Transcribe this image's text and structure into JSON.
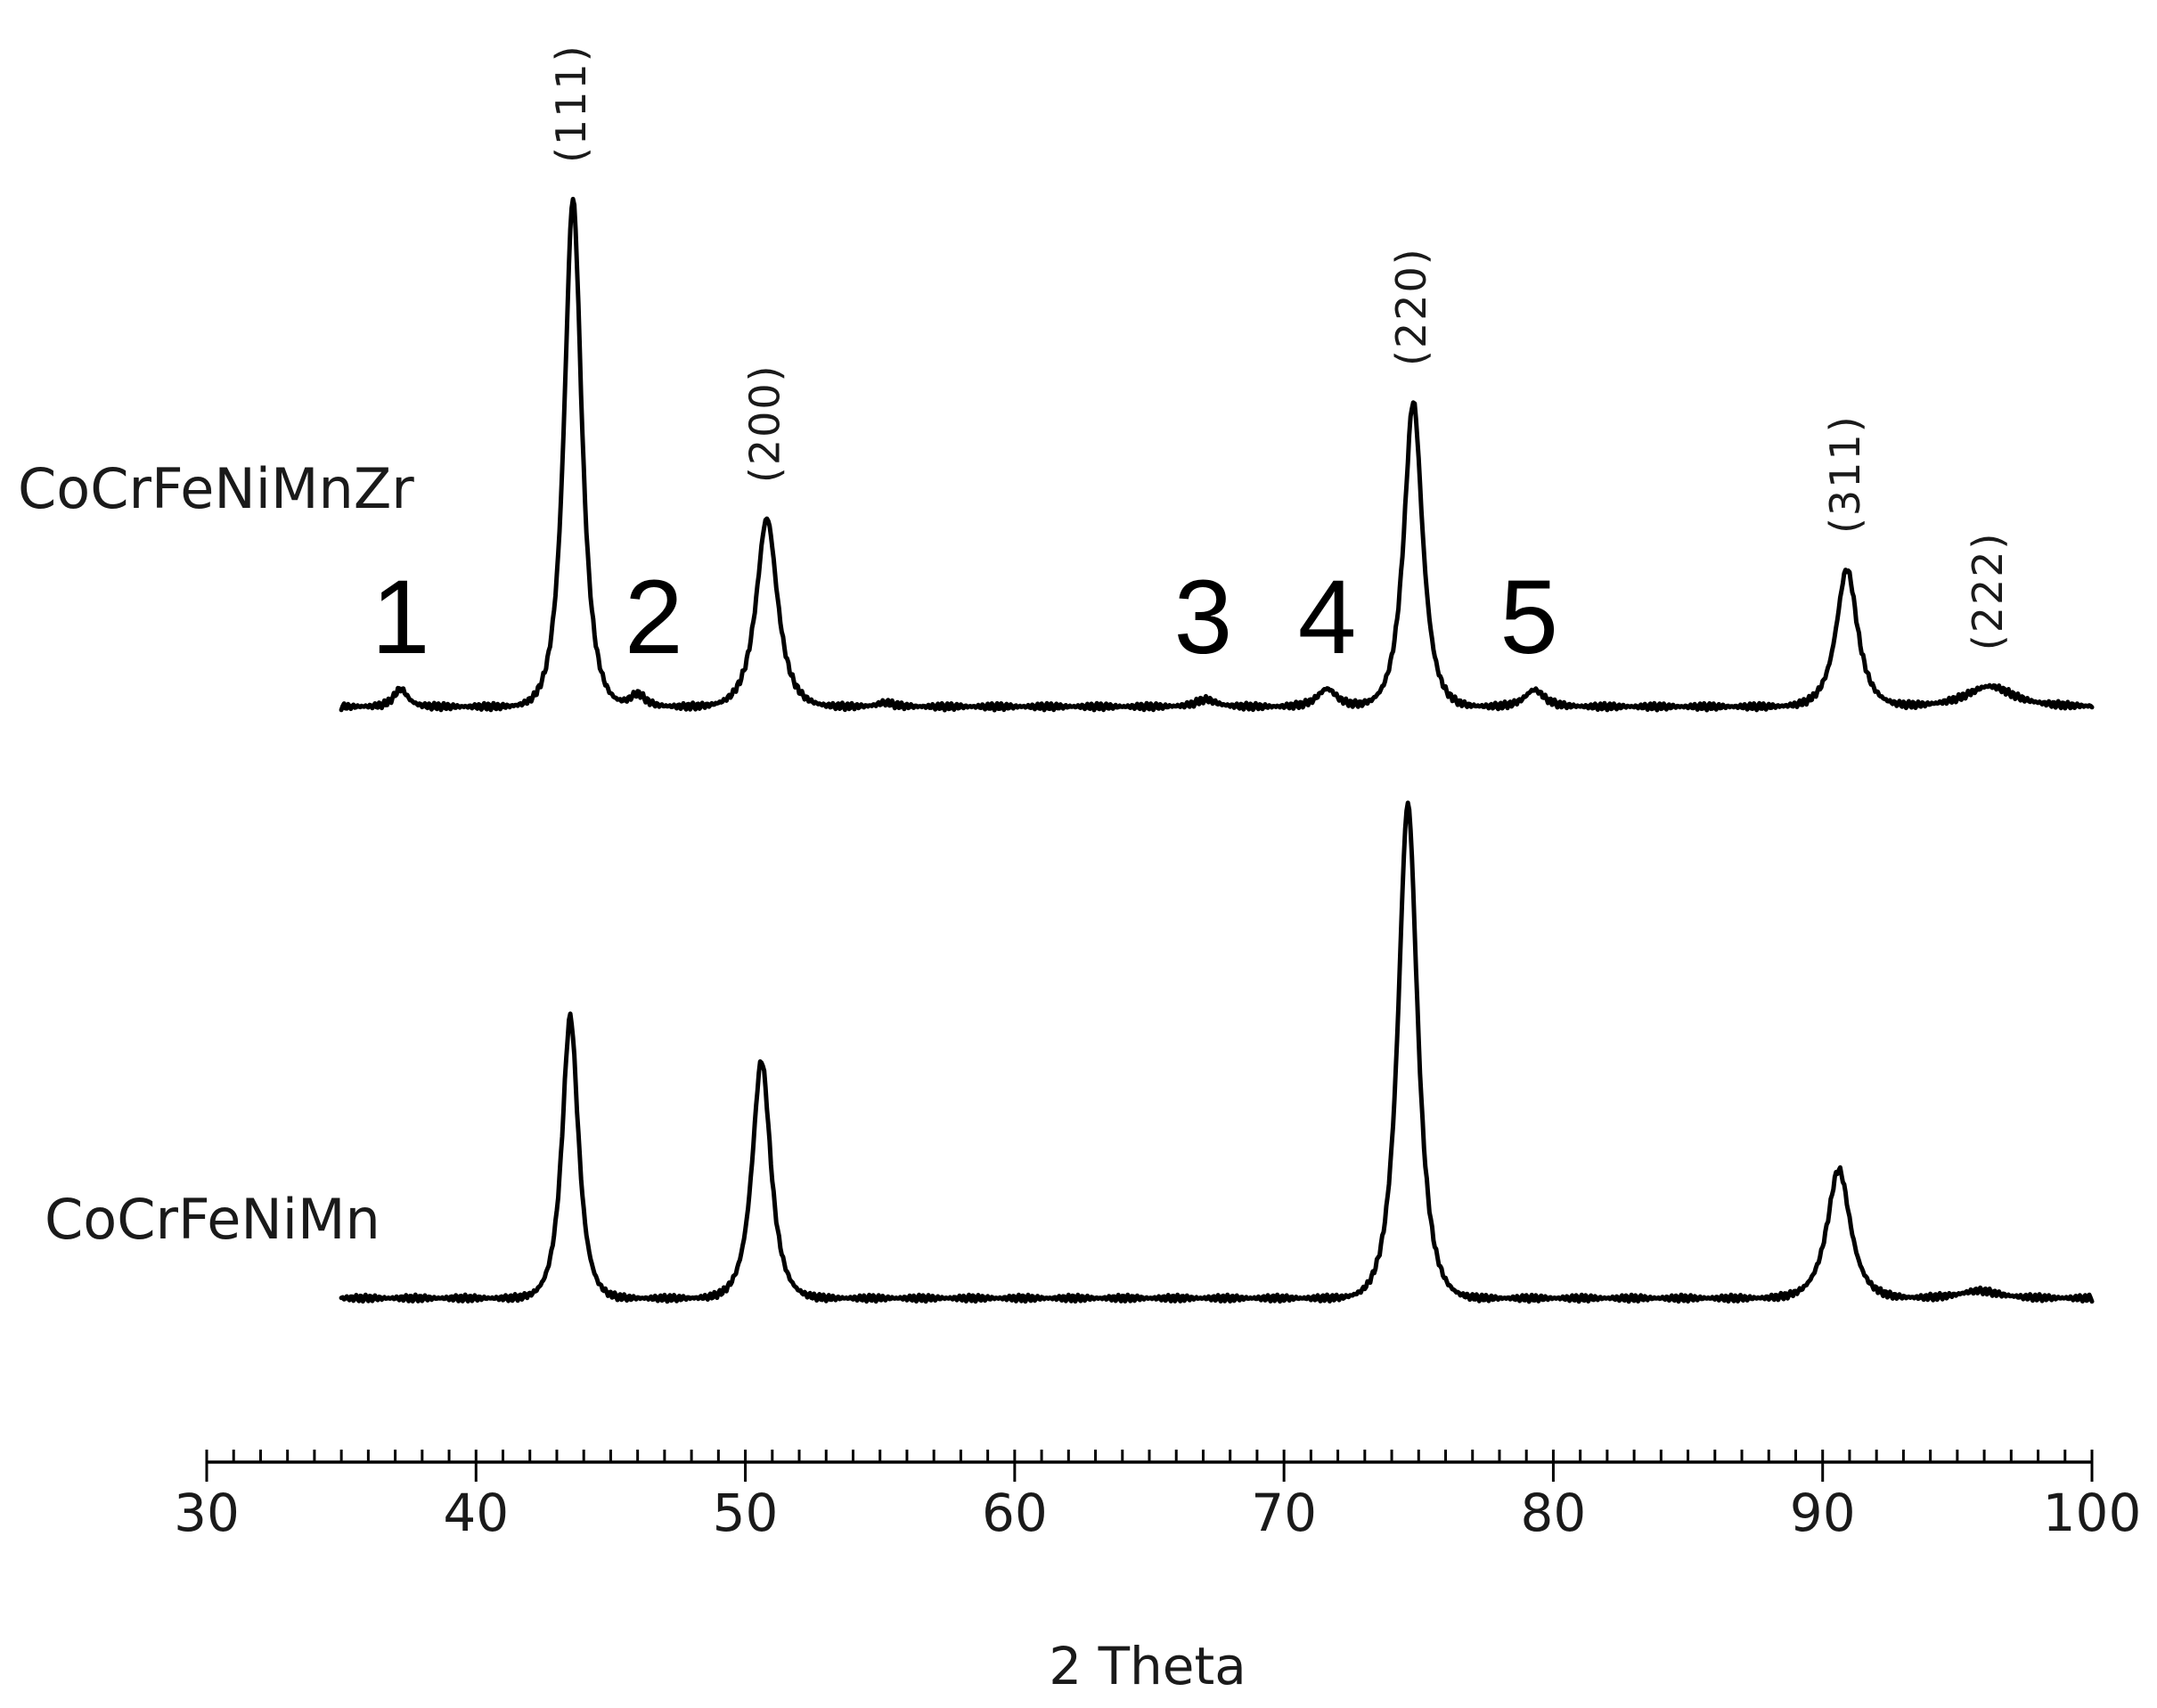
{
  "chart_data": {
    "type": "line",
    "xlabel": "2 Theta",
    "ylabel": "",
    "xlim": [
      30,
      100
    ],
    "x_ticks": [
      30,
      40,
      50,
      60,
      70,
      80,
      90,
      100
    ],
    "minor_tick_step": 1,
    "grid": false,
    "legend": "none",
    "y_axis_visible": false,
    "series": [
      {
        "name": "CoCrFeNiMnZr",
        "x_range": [
          35,
          100
        ],
        "baseline": 0.0,
        "peaks": [
          {
            "x": 37.2,
            "height": 0.035,
            "width": 0.35
          },
          {
            "x": 43.6,
            "height": 1.0,
            "width": 0.45
          },
          {
            "x": 46.0,
            "height": 0.025,
            "width": 0.4
          },
          {
            "x": 50.8,
            "height": 0.37,
            "width": 0.55
          },
          {
            "x": 55.2,
            "height": 0.008,
            "width": 0.4
          },
          {
            "x": 67.1,
            "height": 0.014,
            "width": 0.5
          },
          {
            "x": 71.6,
            "height": 0.035,
            "width": 0.5
          },
          {
            "x": 74.8,
            "height": 0.6,
            "width": 0.48
          },
          {
            "x": 79.3,
            "height": 0.033,
            "width": 0.5
          },
          {
            "x": 90.9,
            "height": 0.27,
            "width": 0.55
          },
          {
            "x": 96.2,
            "height": 0.04,
            "width": 1.2
          }
        ]
      },
      {
        "name": "CoCrFeNiMn",
        "x_range": [
          35,
          100
        ],
        "baseline": 0.0,
        "peaks": [
          {
            "x": 43.5,
            "height": 0.57,
            "width": 0.42
          },
          {
            "x": 50.6,
            "height": 0.48,
            "width": 0.48
          },
          {
            "x": 74.6,
            "height": 1.0,
            "width": 0.5
          },
          {
            "x": 90.6,
            "height": 0.26,
            "width": 0.6
          },
          {
            "x": 95.8,
            "height": 0.015,
            "width": 1.0
          }
        ]
      }
    ],
    "annotations": {
      "miller_indices": [
        {
          "text": "(111)",
          "x": 43.6
        },
        {
          "text": "(200)",
          "x": 50.8
        },
        {
          "text": "(220)",
          "x": 74.8
        },
        {
          "text": "(311)",
          "x": 90.9
        },
        {
          "text": "(222)",
          "x": 96.2
        }
      ],
      "phase_numbers": [
        {
          "text": "1",
          "x": 37.2
        },
        {
          "text": "2",
          "x": 46.6
        },
        {
          "text": "3",
          "x": 67.0
        },
        {
          "text": "4",
          "x": 71.6
        },
        {
          "text": "5",
          "x": 79.1
        }
      ]
    }
  }
}
